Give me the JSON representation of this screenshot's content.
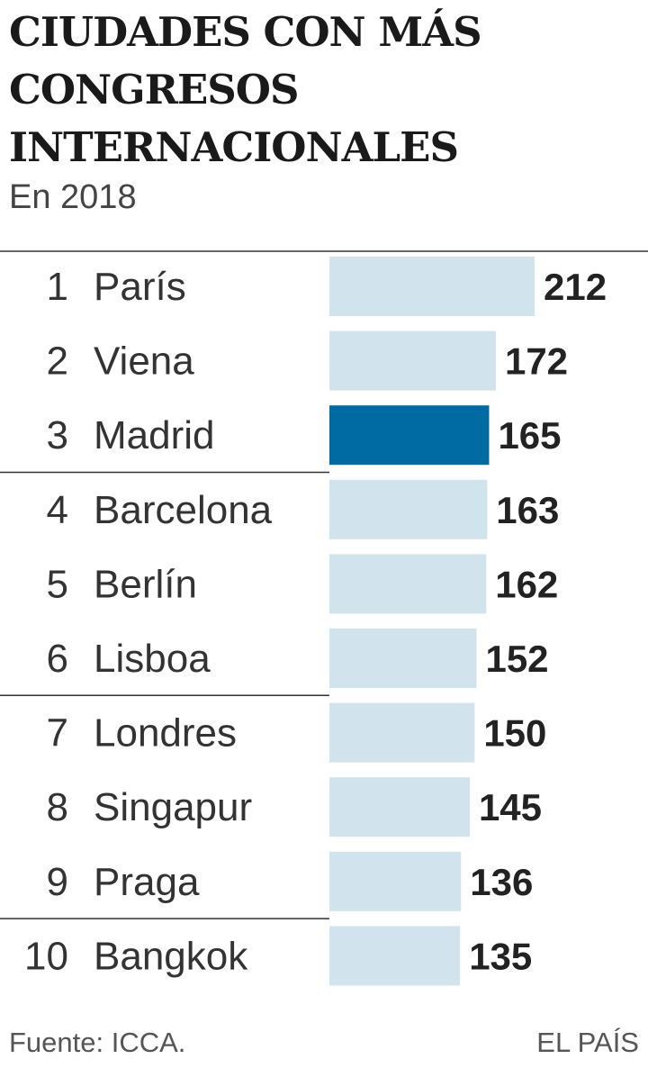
{
  "title": "CIUDADES CON MÁS CONGRESOS INTERNACIONALES",
  "subtitle": "En 2018",
  "source": "Fuente: ICCA.",
  "brand": "EL PAÍS",
  "colors": {
    "bar": "#d1e3ec",
    "highlight": "#006aa3",
    "rule": "#333333"
  },
  "chart_data": {
    "type": "bar",
    "orientation": "horizontal",
    "categories": [
      "París",
      "Viena",
      "Madrid",
      "Barcelona",
      "Berlín",
      "Lisboa",
      "Londres",
      "Singapur",
      "Praga",
      "Bangkok"
    ],
    "ranks": [
      "1",
      "2",
      "3",
      "4",
      "5",
      "6",
      "7",
      "8",
      "9",
      "10"
    ],
    "values": [
      212,
      172,
      165,
      163,
      162,
      152,
      150,
      145,
      136,
      135
    ],
    "highlight": "Madrid",
    "title": "CIUDADES CON MÁS CONGRESOS INTERNACIONALES",
    "subtitle": "En 2018",
    "xlabel": "",
    "ylabel": "",
    "xlim": [
      0,
      212
    ],
    "grid": false
  }
}
